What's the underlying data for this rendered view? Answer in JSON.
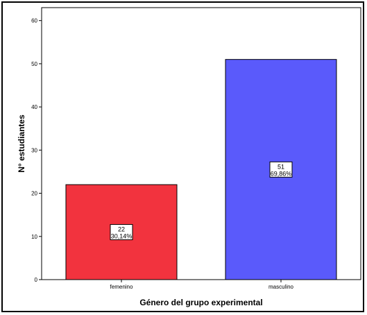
{
  "chart_data": {
    "type": "bar",
    "categories": [
      "femenino",
      "masculino"
    ],
    "values": [
      22,
      51
    ],
    "value_labels": [
      "22",
      "51"
    ],
    "percent_labels": [
      "30,14%",
      "69,86%"
    ],
    "colors": [
      "#f2333e",
      "#5a5afb"
    ],
    "xlabel": "Género del grupo experimental",
    "ylabel": "N° estudiantes",
    "ylim": [
      0,
      63
    ],
    "yticks": [
      "0",
      "10",
      "20",
      "30",
      "40",
      "50",
      "60"
    ],
    "ytick_values": [
      0,
      10,
      20,
      30,
      40,
      50,
      60
    ],
    "grid": false,
    "legend": "none"
  }
}
